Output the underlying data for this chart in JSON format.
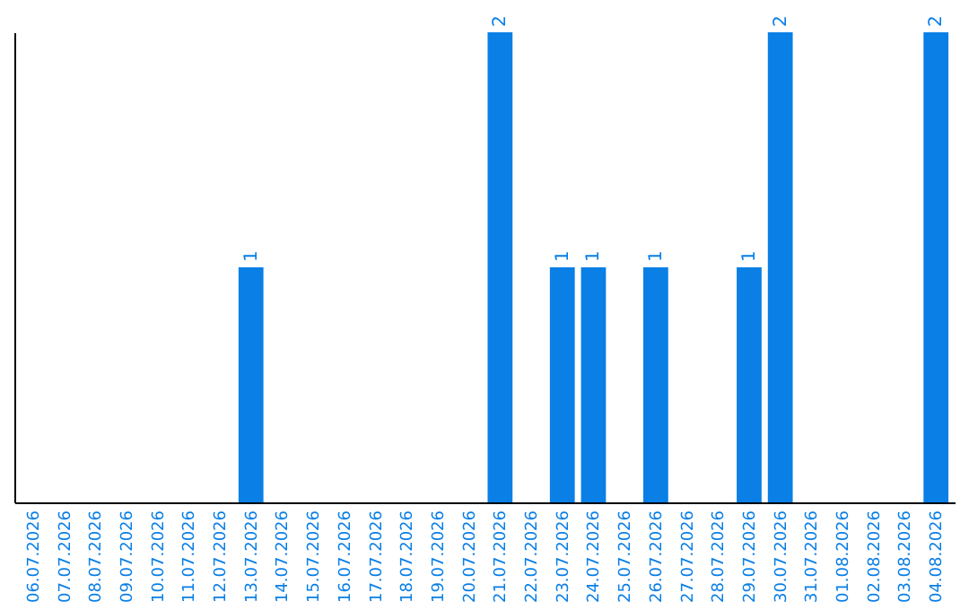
{
  "chart_data": {
    "type": "bar",
    "categories": [
      "06.07.2026",
      "07.07.2026",
      "08.07.2026",
      "09.07.2026",
      "10.07.2026",
      "11.07.2026",
      "12.07.2026",
      "13.07.2026",
      "14.07.2026",
      "15.07.2026",
      "16.07.2026",
      "17.07.2026",
      "18.07.2026",
      "19.07.2026",
      "20.07.2026",
      "21.07.2026",
      "22.07.2026",
      "23.07.2026",
      "24.07.2026",
      "25.07.2026",
      "26.07.2026",
      "27.07.2026",
      "28.07.2026",
      "29.07.2026",
      "30.07.2026",
      "31.07.2026",
      "01.08.2026",
      "02.08.2026",
      "03.08.2026",
      "04.08.2026"
    ],
    "values": [
      0,
      0,
      0,
      0,
      0,
      0,
      0,
      1,
      0,
      0,
      0,
      0,
      0,
      0,
      0,
      2,
      0,
      1,
      1,
      0,
      1,
      0,
      0,
      1,
      2,
      0,
      0,
      0,
      0,
      2
    ],
    "value_labels": [
      null,
      null,
      null,
      null,
      null,
      null,
      null,
      "1",
      null,
      null,
      null,
      null,
      null,
      null,
      null,
      "2",
      null,
      "1",
      "1",
      null,
      "1",
      null,
      null,
      "1",
      "2",
      null,
      null,
      null,
      null,
      "2"
    ],
    "color": "#0a7fe6",
    "tick_labels": "x"
  }
}
